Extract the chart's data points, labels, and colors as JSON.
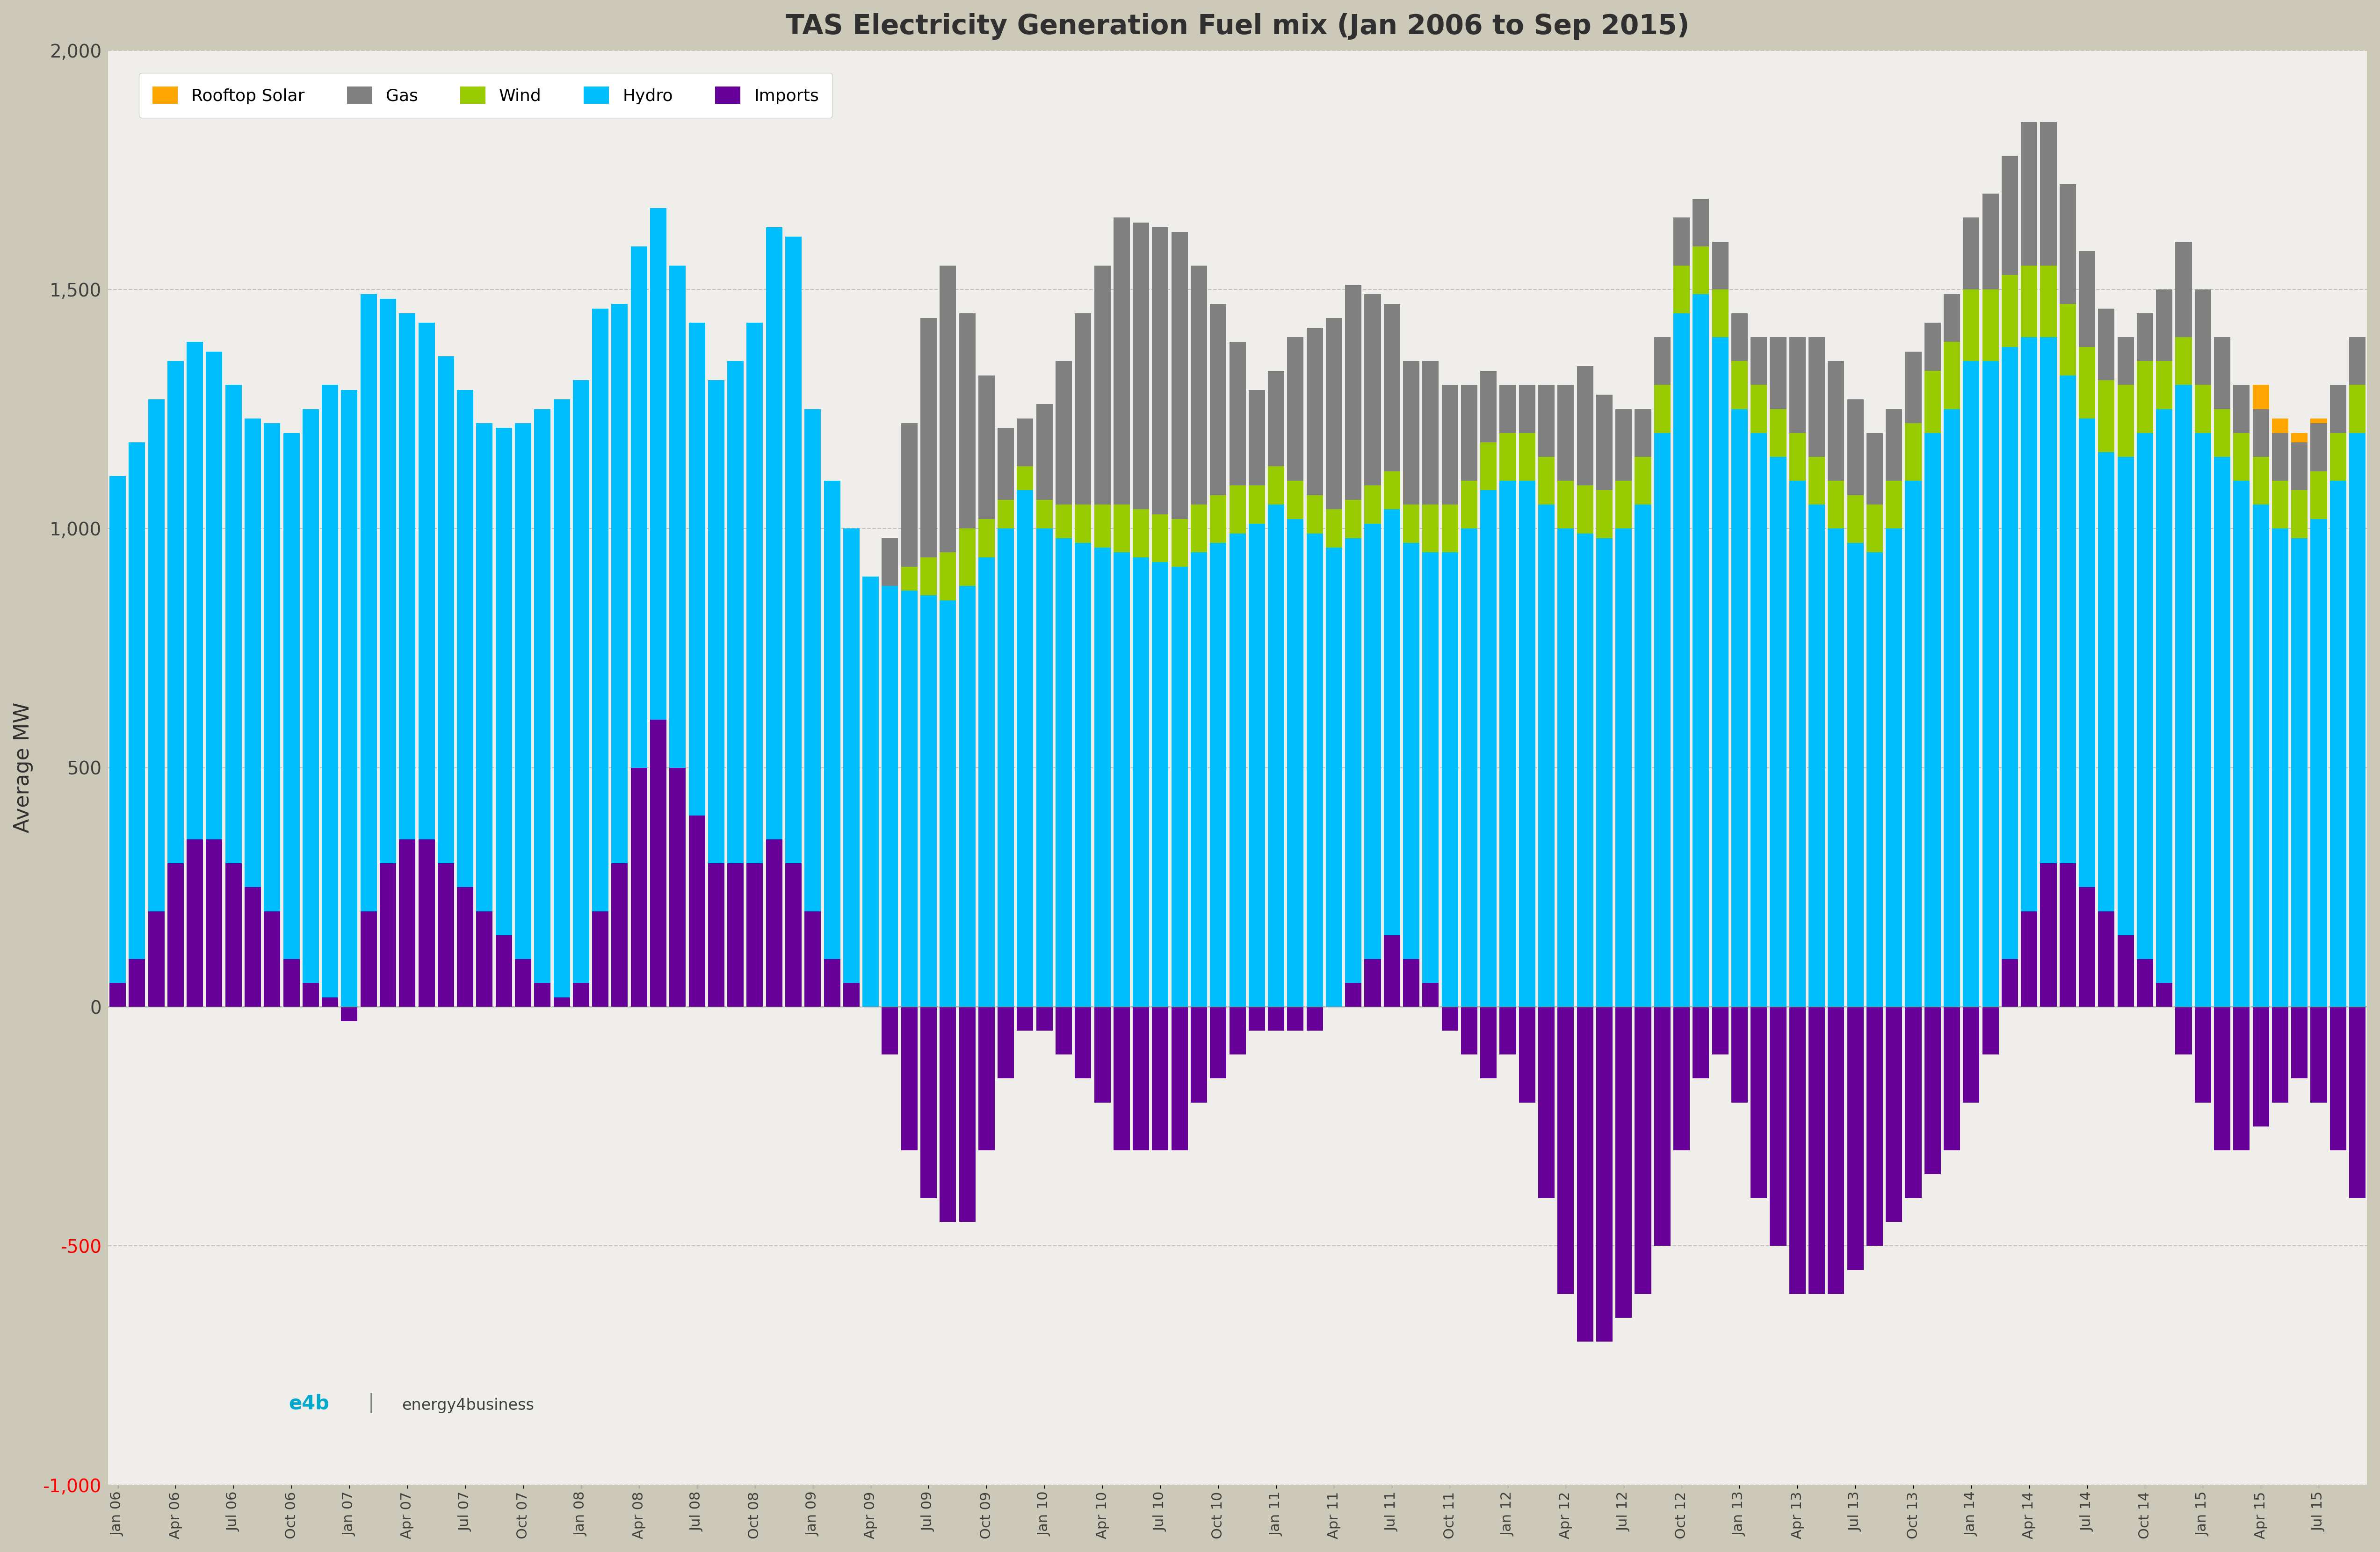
{
  "title": "TAS Electricity Generation Fuel mix (Jan 2006 to Sep 2015)",
  "ylabel": "Average MW",
  "background_color": "#cdc9b8",
  "plot_bg_color": "#f0eeea",
  "colors": {
    "rooftop_solar": "#FFA500",
    "gas": "#808080",
    "wind": "#99CC00",
    "hydro": "#00BFFF",
    "imports": "#660099"
  },
  "legend_labels": [
    "Rooftop Solar",
    "Gas",
    "Wind",
    "Hydro",
    "Imports"
  ],
  "ylim": [
    -1000,
    2000
  ],
  "yticks": [
    -1000,
    -500,
    0,
    500,
    1000,
    1500,
    2000
  ],
  "red_yticks": [
    -1000,
    -500
  ]
}
